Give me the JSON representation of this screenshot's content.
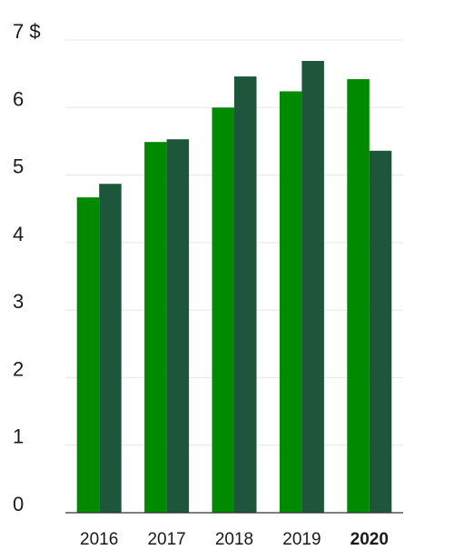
{
  "chart_data": {
    "type": "bar",
    "categories": [
      "2016",
      "2017",
      "2018",
      "2019",
      "2020"
    ],
    "bold_categories": [
      4
    ],
    "series": [
      {
        "color": "#008a00",
        "values": [
          4.67,
          5.49,
          6.0,
          6.24,
          6.42
        ]
      },
      {
        "color": "#1d563b",
        "values": [
          4.87,
          5.53,
          6.46,
          6.69,
          5.36
        ]
      }
    ],
    "ylim": [
      0,
      7
    ],
    "yticks": [
      0,
      1,
      2,
      3,
      4,
      5,
      6,
      {
        "value": 7,
        "label": "7 $"
      }
    ],
    "grid": true
  }
}
